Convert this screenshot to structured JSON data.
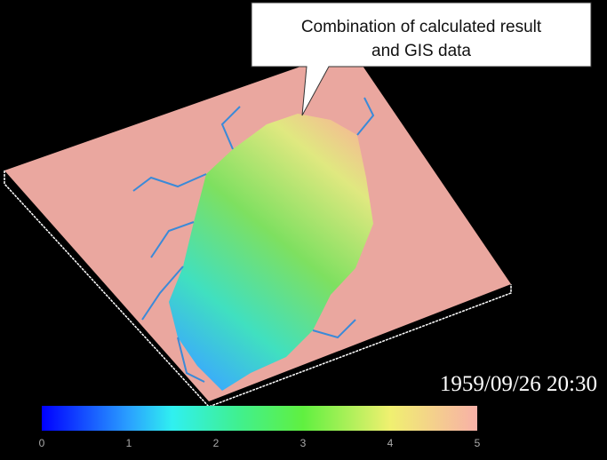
{
  "callout": {
    "lines": [
      "Combination of calculated result",
      "and GIS data"
    ]
  },
  "timestamp": "1959/09/26 20:30",
  "colorbar": {
    "ticks": [
      0,
      1,
      2,
      3,
      4,
      5
    ]
  }
}
